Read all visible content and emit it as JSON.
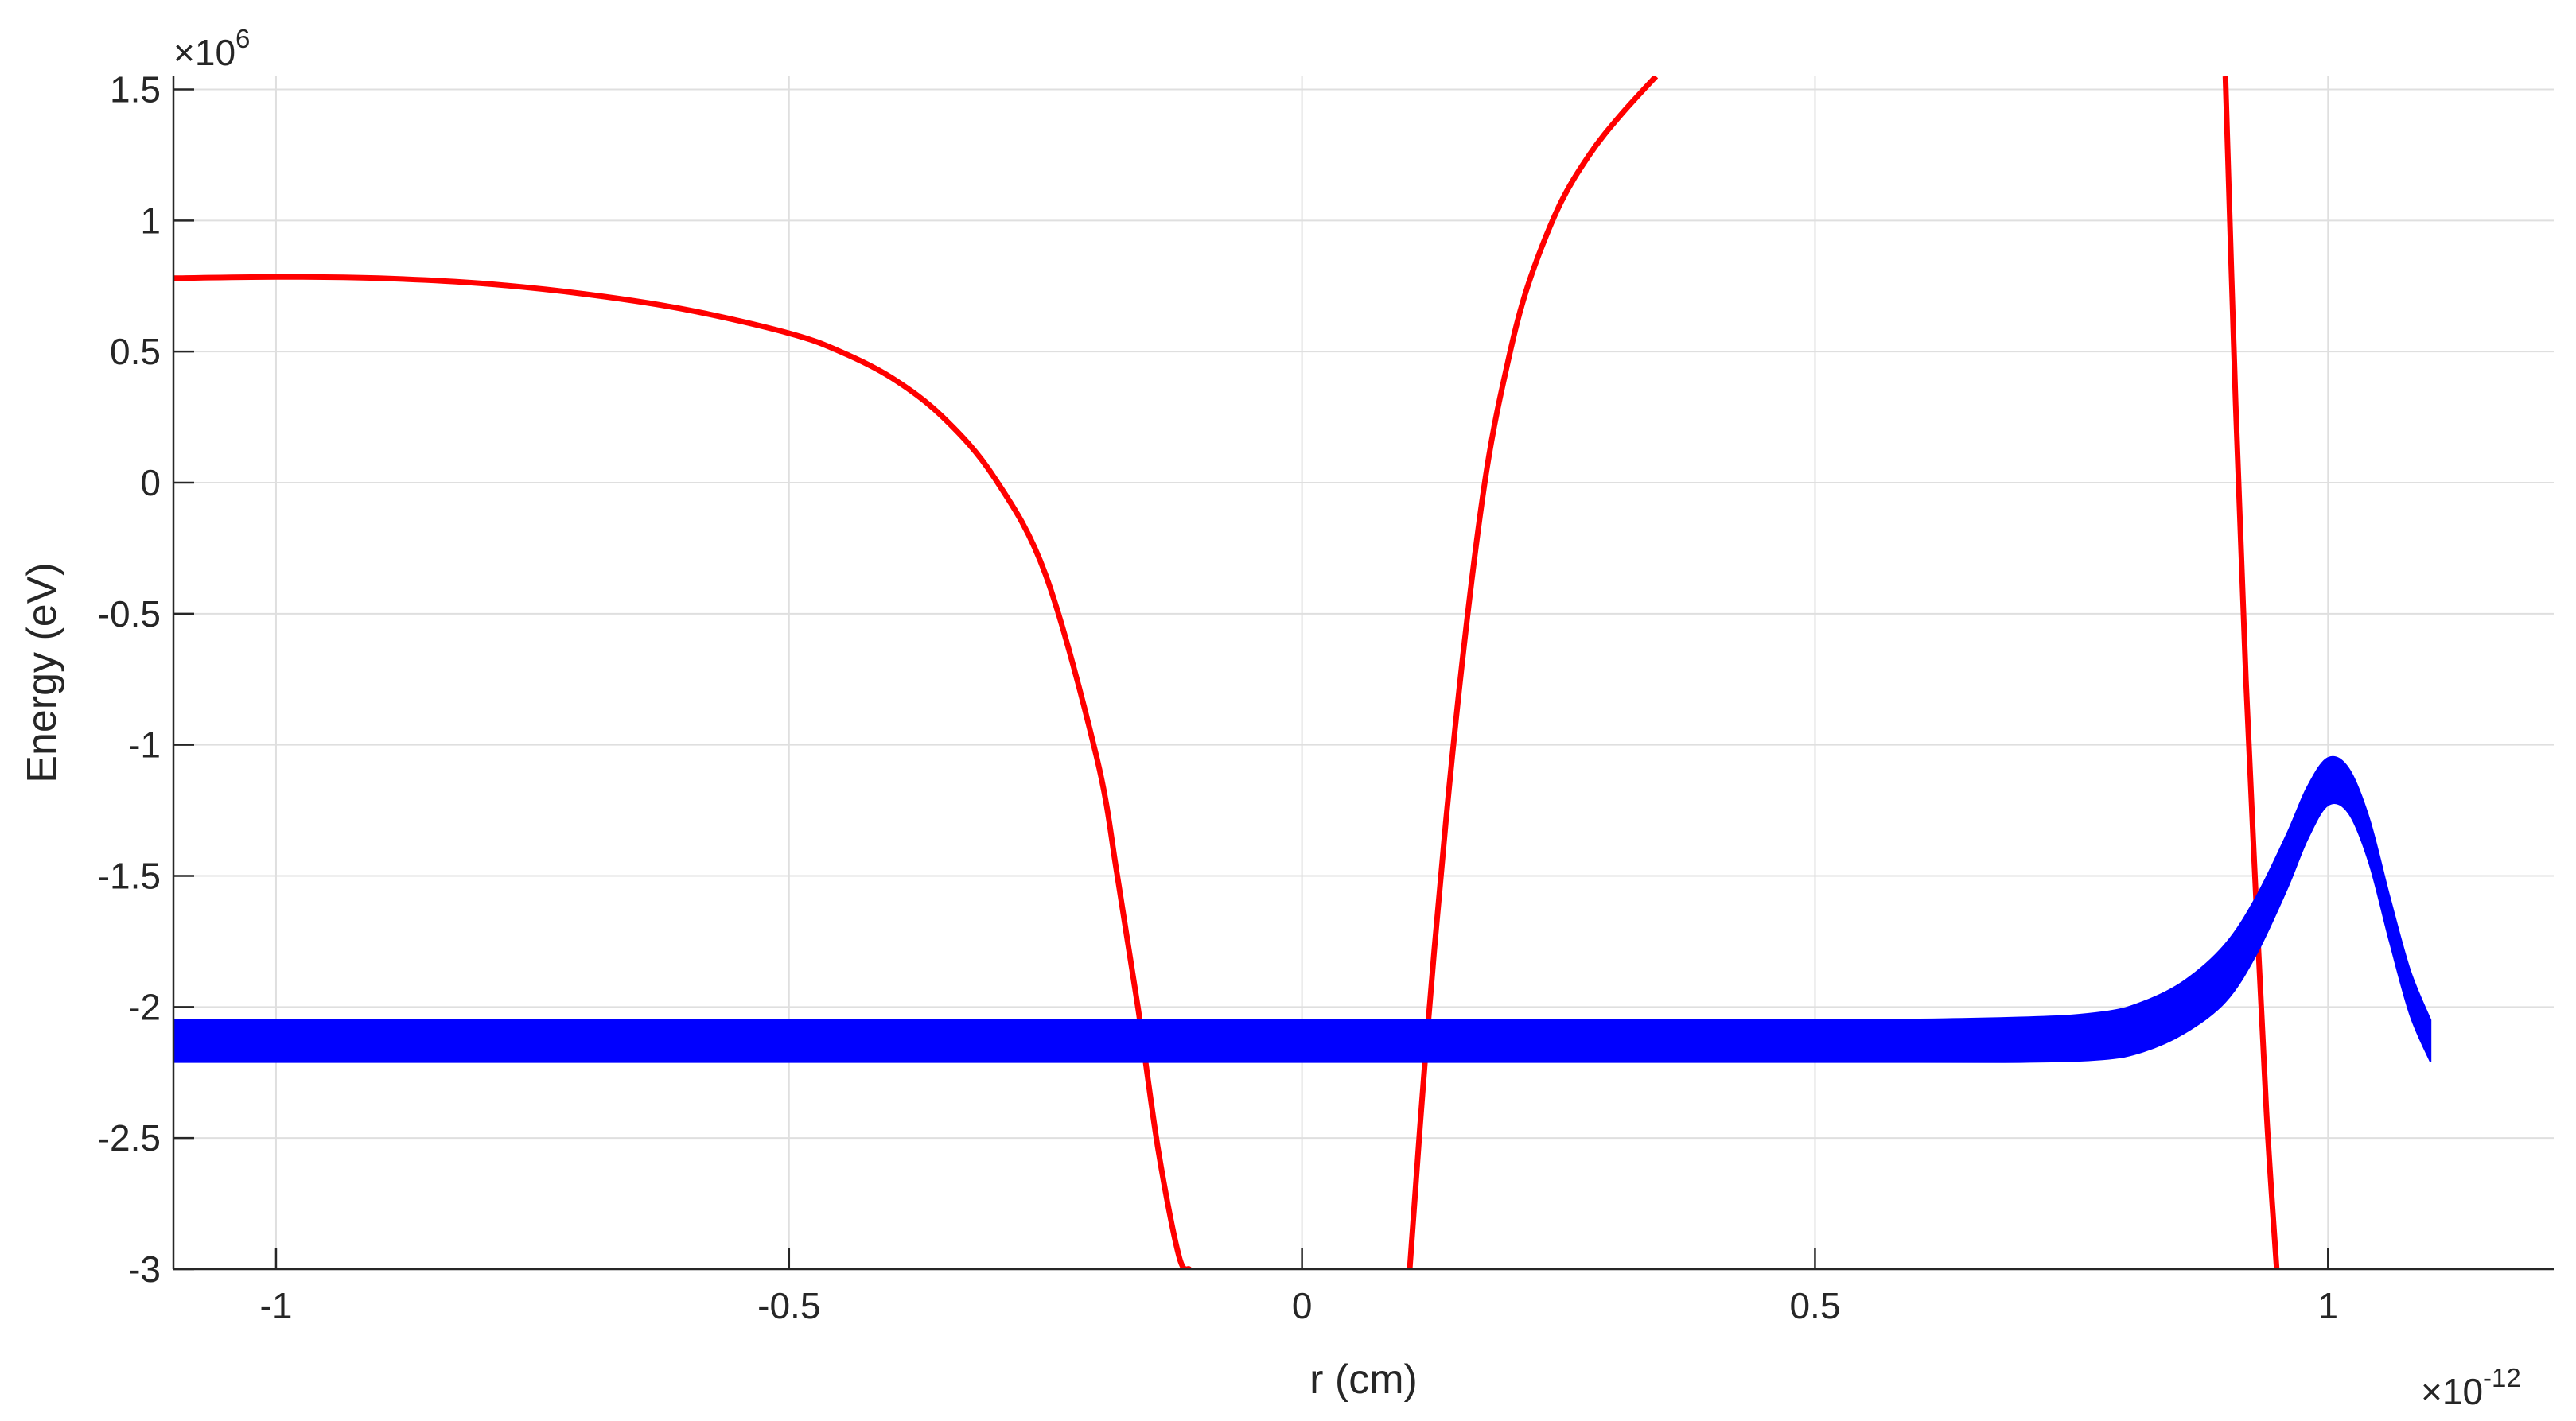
{
  "chart_data": {
    "type": "line",
    "title": "",
    "xlabel": "r (cm)",
    "ylabel": "Energy (eV)",
    "x_exponent_label": {
      "base": "×10",
      "power": "-12"
    },
    "y_exponent_label": {
      "base": "×10",
      "power": "6"
    },
    "xlim": [
      -1.1,
      1.22
    ],
    "ylim": [
      -3.0,
      1.55
    ],
    "grid": true,
    "x_ticks": [
      -1,
      -0.5,
      0,
      0.5,
      1
    ],
    "x_tick_labels": [
      "-1",
      "-0.5",
      "0",
      "0.5",
      "1"
    ],
    "y_ticks": [
      1.5,
      1,
      0.5,
      0,
      -0.5,
      -1,
      -1.5,
      -2,
      -2.5,
      -3
    ],
    "y_tick_labels": [
      "1.5",
      "1",
      "0.5",
      "0",
      "-0.5",
      "-1",
      "-1.5",
      "-2",
      "-2.5",
      "-3"
    ],
    "series": [
      {
        "color": "#ff0000",
        "style": "line",
        "segments": [
          {
            "x": [
              -1.1,
              -1.0,
              -0.9,
              -0.8,
              -0.7,
              -0.6,
              -0.5,
              -0.45,
              -0.4,
              -0.35,
              -0.3,
              -0.25,
              -0.2,
              -0.18,
              -0.16,
              -0.14,
              -0.12,
              -0.11
            ],
            "y": [
              0.78,
              0.785,
              0.78,
              0.76,
              0.72,
              0.66,
              0.57,
              0.5,
              0.4,
              0.25,
              0.02,
              -0.35,
              -1.05,
              -1.5,
              -2.0,
              -2.55,
              -2.95,
              -3.0
            ]
          },
          {
            "x": [
              0.105,
              0.12,
              0.14,
              0.16,
              0.18,
              0.2,
              0.22,
              0.25,
              0.28,
              0.31,
              0.345
            ],
            "y": [
              -3.0,
              -2.2,
              -1.3,
              -0.55,
              0.05,
              0.45,
              0.75,
              1.05,
              1.25,
              1.4,
              1.55
            ]
          },
          {
            "x": [
              0.9,
              0.91,
              0.92,
              0.93,
              0.94,
              0.95
            ],
            "y": [
              1.55,
              0.3,
              -0.75,
              -1.6,
              -2.4,
              -3.0
            ]
          }
        ]
      },
      {
        "color": "#0000ff",
        "style": "band",
        "x": [
          -1.1,
          -0.5,
          0.0,
          0.5,
          0.7,
          0.78,
          0.82,
          0.86,
          0.9,
          0.93,
          0.96,
          0.98,
          1.0,
          1.02,
          1.04,
          1.06,
          1.08,
          1.1
        ],
        "y_upper": [
          -2.05,
          -2.05,
          -2.05,
          -2.05,
          -2.04,
          -2.02,
          -1.98,
          -1.9,
          -1.76,
          -1.58,
          -1.34,
          -1.16,
          -1.05,
          -1.09,
          -1.28,
          -1.58,
          -1.86,
          -2.05
        ],
        "y_lower": [
          -2.21,
          -2.21,
          -2.21,
          -2.21,
          -2.21,
          -2.2,
          -2.17,
          -2.1,
          -1.98,
          -1.8,
          -1.55,
          -1.36,
          -1.23,
          -1.26,
          -1.45,
          -1.75,
          -2.03,
          -2.21
        ]
      }
    ]
  }
}
